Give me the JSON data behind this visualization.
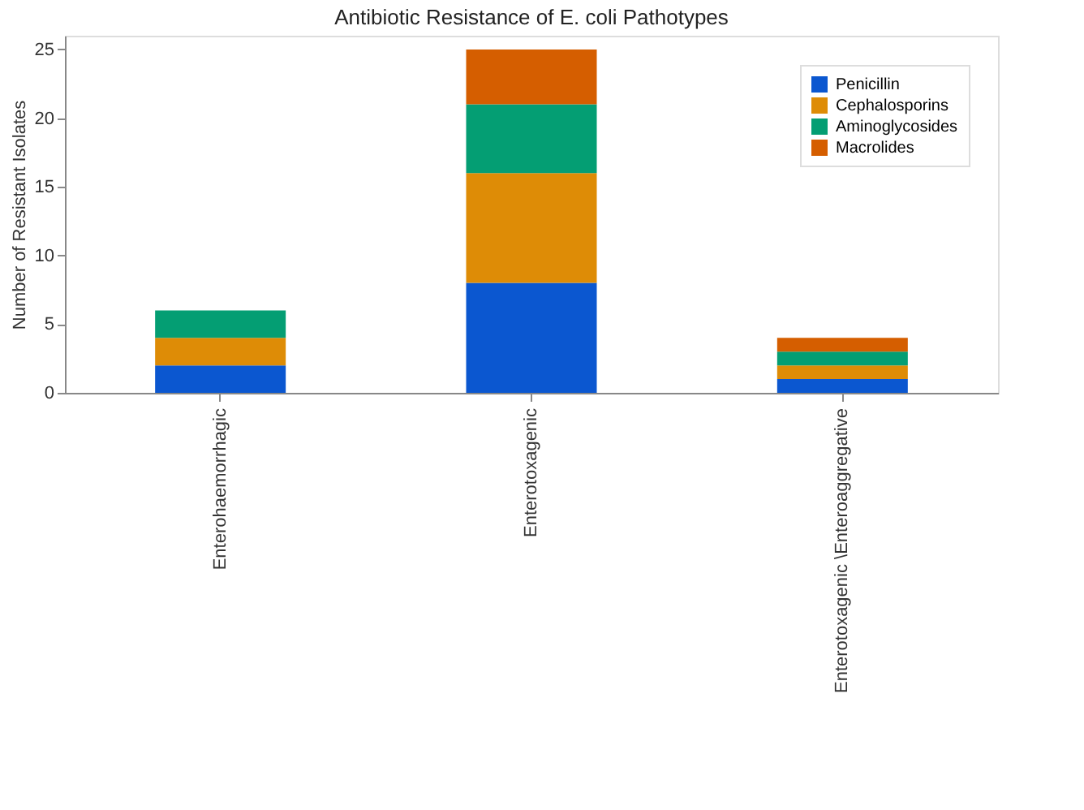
{
  "chart_data": {
    "type": "bar",
    "stacked": true,
    "title": "Antibiotic Resistance of E. coli Pathotypes",
    "ylabel": "Number of Resistant Isolates",
    "categories": [
      "Enterohaemorrhagic",
      "Enterotoxagenic",
      "Enterotoxagenic \\Enteroaggregative"
    ],
    "series": [
      {
        "name": "Penicillin",
        "color": "#0b57d0",
        "values": [
          2,
          8,
          1
        ]
      },
      {
        "name": "Cephalosporins",
        "color": "#de8c06",
        "values": [
          2,
          8,
          1
        ]
      },
      {
        "name": "Aminoglycosides",
        "color": "#049e73",
        "values": [
          2,
          5,
          1
        ]
      },
      {
        "name": "Macrolides",
        "color": "#d55e00",
        "values": [
          0,
          4,
          1
        ]
      }
    ],
    "ylim": [
      0,
      26
    ],
    "yticks": [
      0,
      5,
      10,
      15,
      20,
      25
    ],
    "grid": false,
    "legend": "top right"
  }
}
